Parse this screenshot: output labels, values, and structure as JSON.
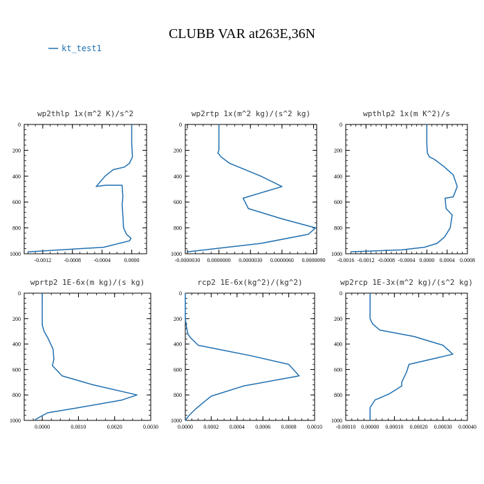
{
  "figure": {
    "title": "CLUBB VAR at263E,36N",
    "legend_label": "kt_test1",
    "series_color": "#1f6fb0"
  },
  "chart_data": [
    {
      "type": "line",
      "title": "wp2thlp   1x(m^2 K)/s^2",
      "xlim": [
        -0.00145,
        0.0002
      ],
      "ylim": [
        1000,
        0
      ],
      "x_ticks": [
        -0.0012,
        -0.0008,
        -0.0004,
        0.0
      ],
      "x_tick_labels": [
        "-0.0012",
        "-0.0008",
        "-0.0004",
        "0.0000"
      ],
      "y_ticks": [
        0,
        200,
        400,
        600,
        800,
        1000
      ],
      "y_tick_labels": [
        "0",
        "200",
        "400",
        "600",
        "800",
        "1000"
      ],
      "series": [
        {
          "x": [
            0.0,
            0.0,
            1e-05,
            -3e-05,
            -0.0001,
            -0.00025,
            -0.00036,
            -0.00048,
            -0.00035,
            -0.00013,
            -0.00012,
            -0.00013,
            -0.00012,
            -0.00011,
            -7e-05,
            -1e-05,
            -3e-05,
            -0.00038,
            -0.0014
          ],
          "y": [
            0,
            150,
            250,
            300,
            330,
            350,
            400,
            480,
            470,
            470,
            560,
            620,
            700,
            800,
            850,
            880,
            900,
            950,
            985
          ]
        }
      ]
    },
    {
      "type": "line",
      "title": "wp2rtp   1x(m^2 kg)/(s^2 kg)",
      "xlim": [
        -3.2e-06,
        9.3e-06
      ],
      "ylim": [
        1000,
        0
      ],
      "x_ticks": [
        -3e-06,
        0.0,
        3e-06,
        6e-06,
        9e-06
      ],
      "x_tick_labels": [
        "-0.0000030",
        "0.0000000",
        "0.0000030",
        "0.0000060",
        "0.0000090"
      ],
      "y_ticks": [
        0,
        200,
        400,
        600,
        800,
        1000
      ],
      "y_tick_labels": [
        "0",
        "200",
        "400",
        "600",
        "800",
        "1000"
      ],
      "series": [
        {
          "x": [
            0.0,
            0.0,
            -1e-07,
            2e-07,
            1e-06,
            4e-06,
            6e-06,
            2.3e-06,
            2.8e-06,
            6e-06,
            9.2e-06,
            8.5e-06,
            4e-06,
            -3e-06
          ],
          "y": [
            0,
            200,
            220,
            250,
            300,
            400,
            480,
            570,
            650,
            730,
            800,
            850,
            920,
            985
          ]
        }
      ]
    },
    {
      "type": "line",
      "title": "wpthlp2   1x(m K^2)/s",
      "xlim": [
        -0.0016,
        0.0008
      ],
      "ylim": [
        1000,
        0
      ],
      "x_ticks": [
        -0.0016,
        -0.0012,
        -0.0008,
        -0.0004,
        0.0,
        0.0004,
        0.0008
      ],
      "x_tick_labels": [
        "-0.0016",
        "-0.0012",
        "-0.0008",
        "-0.0004",
        "0.0000",
        "0.0004",
        "0.0008"
      ],
      "y_ticks": [
        0,
        200,
        400,
        600,
        800,
        1000
      ],
      "y_tick_labels": [
        "0",
        "200",
        "400",
        "600",
        "800",
        "1000"
      ],
      "series": [
        {
          "x": [
            0.0,
            0.0,
            1e-05,
            5e-05,
            0.00015,
            0.00035,
            0.00052,
            0.0006,
            0.00052,
            0.00036,
            0.00038,
            0.0005,
            0.00046,
            0.00035,
            0.0002,
            -5e-05,
            -0.0005,
            -0.0015
          ],
          "y": [
            0,
            150,
            220,
            250,
            270,
            330,
            390,
            480,
            560,
            570,
            650,
            700,
            800,
            870,
            920,
            950,
            970,
            985
          ]
        }
      ]
    },
    {
      "type": "line",
      "title": "wprtp2   1E-6x(m kg)/(s kg)",
      "xlim": [
        -0.0005,
        0.003
      ],
      "ylim": [
        1000,
        0
      ],
      "x_ticks": [
        0.0,
        0.001,
        0.002,
        0.003
      ],
      "x_tick_labels": [
        "0.0000",
        "0.0010",
        "0.0020",
        "0.0030"
      ],
      "y_ticks": [
        0,
        200,
        400,
        600,
        800,
        1000
      ],
      "y_tick_labels": [
        "0",
        "200",
        "400",
        "600",
        "800",
        "1000"
      ],
      "series": [
        {
          "x": [
            0.0,
            0.0,
            5e-05,
            0.00015,
            0.0003,
            0.00032,
            0.00028,
            0.00055,
            0.0014,
            0.00262,
            0.0022,
            0.001,
            0.00015,
            -5e-05,
            -0.0002
          ],
          "y": [
            0,
            250,
            300,
            350,
            440,
            520,
            570,
            650,
            720,
            800,
            840,
            900,
            940,
            970,
            995
          ]
        }
      ]
    },
    {
      "type": "line",
      "title": "rcp2   1E-6x(kg^2)/(kg^2)",
      "xlim": [
        0.0,
        0.001
      ],
      "ylim": [
        1000,
        0
      ],
      "x_ticks": [
        0.0,
        0.0002,
        0.0004,
        0.0006,
        0.0008,
        0.001
      ],
      "x_tick_labels": [
        "0.0000",
        "0.0002",
        "0.0004",
        "0.0006",
        "0.0008",
        "0.0010"
      ],
      "y_ticks": [
        0,
        200,
        400,
        600,
        800,
        1000
      ],
      "y_tick_labels": [
        "0",
        "200",
        "400",
        "600",
        "800",
        "1000"
      ],
      "series": [
        {
          "x": [
            0.0,
            0.0,
            1e-05,
            2e-05,
            4e-05,
            0.0001,
            0.0005,
            0.0008,
            0.00088,
            0.00045,
            0.0002,
            0.00015,
            8e-05,
            3e-05,
            0.0
          ],
          "y": [
            0,
            200,
            270,
            320,
            350,
            410,
            490,
            560,
            650,
            730,
            810,
            850,
            910,
            960,
            1000
          ]
        }
      ]
    },
    {
      "type": "line",
      "title": "wp2rcp   1E-3x(m^2 kg)/(s^2 kg)",
      "xlim": [
        -0.0001,
        0.0004
      ],
      "ylim": [
        1000,
        0
      ],
      "x_ticks": [
        -0.0001,
        0.0,
        0.0001,
        0.0002,
        0.0003,
        0.0004
      ],
      "x_tick_labels": [
        "-0.00010",
        "0.00000",
        "0.00010",
        "0.00020",
        "0.00030",
        "0.00040"
      ],
      "y_ticks": [
        0,
        200,
        400,
        600,
        800,
        1000
      ],
      "y_tick_labels": [
        "0",
        "200",
        "400",
        "600",
        "800",
        "1000"
      ],
      "series": [
        {
          "x": [
            0.0,
            0.0,
            1e-05,
            4e-05,
            0.00018,
            0.0003,
            0.00034,
            0.00016,
            0.00015,
            0.00013,
            0.00013,
            8e-05,
            2e-05,
            0.0,
            0.0
          ],
          "y": [
            0,
            200,
            240,
            290,
            340,
            410,
            480,
            560,
            620,
            700,
            730,
            790,
            840,
            900,
            1000
          ]
        }
      ]
    }
  ]
}
